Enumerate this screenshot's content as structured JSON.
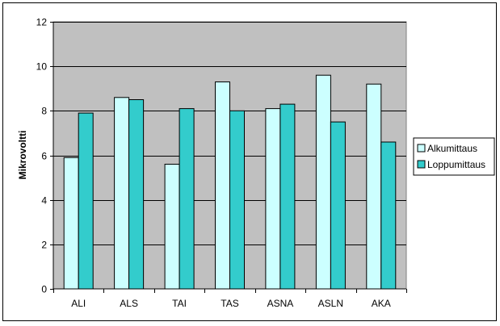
{
  "chart_data": {
    "type": "bar",
    "categories": [
      "ALI",
      "ALS",
      "TAI",
      "TAS",
      "ASNA",
      "ASLN",
      "AKA"
    ],
    "series": [
      {
        "name": "Alkumittaus",
        "values": [
          5.9,
          8.6,
          5.6,
          9.3,
          8.1,
          9.6,
          9.2
        ],
        "color": "#ccffff"
      },
      {
        "name": "Loppumittaus",
        "values": [
          7.9,
          8.5,
          8.1,
          8.0,
          8.3,
          7.5,
          6.6
        ],
        "color": "#33cccc"
      }
    ],
    "title": "",
    "xlabel": "",
    "ylabel": "Mikrovoltti",
    "ylim": [
      0,
      12
    ],
    "yticks": [
      0,
      2,
      4,
      6,
      8,
      10,
      12
    ],
    "grid": true,
    "legend_position": "right",
    "plot_background": "#c0c0c0"
  }
}
